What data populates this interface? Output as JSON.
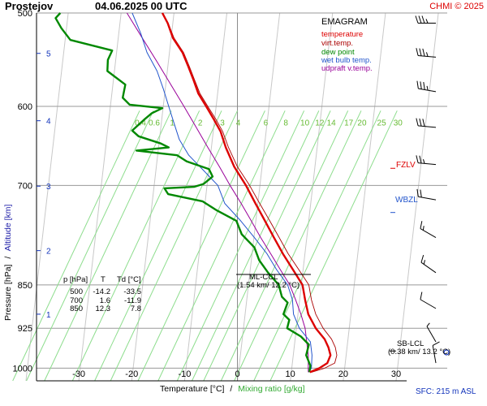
{
  "header": {
    "station": "Prostejov",
    "datetime": "04.06.2025 00 UTC",
    "copyright": "CHMI © 2025"
  },
  "axes": {
    "ylabel_pressure": "Pressure [hPa]",
    "ylabel_sep": "/",
    "ylabel_altitude": "Altitude [km]",
    "xlabel_temperature": "Temperature [°C]",
    "xlabel_sep": "/",
    "xlabel_mixing": "Mixing ratio [g/kg]",
    "footer": "SFC: 215 m ASL"
  },
  "legend": {
    "title": "EMAGRAM",
    "items": [
      {
        "label": "temperature",
        "color": "#cc0000"
      },
      {
        "label": "virt.temp.",
        "color": "#cc0000"
      },
      {
        "label": "dew point",
        "color": "#008800"
      },
      {
        "label": "wet bulb temp.",
        "color": "#2255cc"
      },
      {
        "label": "udpraft v.temp.",
        "color": "#990099"
      }
    ]
  },
  "levels": {
    "fzlv": "FZLV",
    "wbzl": "WBZL",
    "ml_ccl": "ML-CCL",
    "ml_ccl_val": "(1.54 km/ 12.2 °C)",
    "sb_lcl": "SB-LCL",
    "sb_lcl_val": "(0.38 km/ 13.2 °C)"
  },
  "table": {
    "header": [
      "p [hPa]",
      "T",
      "Td [°C]"
    ],
    "rows": [
      [
        "500",
        "-14.2",
        "-33.5"
      ],
      [
        "700",
        "1.6",
        "-11.9"
      ],
      [
        "850",
        "12.3",
        "7.8"
      ]
    ]
  },
  "chart_data": {
    "type": "line",
    "title": "EMAGRAM",
    "x_label": "Temperature [°C]",
    "y_label": "Pressure [hPa]",
    "xlim": [
      -38,
      32
    ],
    "ylim": [
      1025,
      500
    ],
    "log_y": true,
    "x_ticks": [
      -30,
      -20,
      -10,
      0,
      10,
      20,
      30
    ],
    "pressure_ticks": [
      500,
      600,
      700,
      850,
      925,
      1000
    ],
    "altitude_ticks": [
      {
        "label": "1",
        "p": 900
      },
      {
        "label": "2",
        "p": 795
      },
      {
        "label": "3",
        "p": 701
      },
      {
        "label": "4",
        "p": 617
      },
      {
        "label": "5",
        "p": 541
      }
    ],
    "mixing_ratio_labels": [
      "0.4",
      "0.6",
      "1",
      "2",
      "3",
      "4",
      "6",
      "8",
      "10",
      "12",
      "14",
      "17",
      "20",
      "25",
      "30"
    ],
    "series": [
      {
        "name": "temperature",
        "color": "#dd0000",
        "points": [
          [
            1008,
            13.7
          ],
          [
            1000,
            15.5
          ],
          [
            990,
            17.0
          ],
          [
            975,
            17.6
          ],
          [
            960,
            17.2
          ],
          [
            945,
            16.5
          ],
          [
            925,
            14.8
          ],
          [
            900,
            13.4
          ],
          [
            875,
            12.8
          ],
          [
            850,
            12.3
          ],
          [
            825,
            10.5
          ],
          [
            800,
            8.6
          ],
          [
            775,
            6.9
          ],
          [
            750,
            5.2
          ],
          [
            725,
            3.4
          ],
          [
            700,
            1.6
          ],
          [
            675,
            -0.6
          ],
          [
            650,
            -2.2
          ],
          [
            630,
            -3.2
          ],
          [
            615,
            -4.5
          ],
          [
            600,
            -5.9
          ],
          [
            585,
            -7.4
          ],
          [
            570,
            -8.3
          ],
          [
            555,
            -9.3
          ],
          [
            540,
            -10.4
          ],
          [
            525,
            -12.2
          ],
          [
            510,
            -13.2
          ],
          [
            500,
            -14.2
          ]
        ]
      },
      {
        "name": "virt.temp.",
        "color": "#aa0000",
        "points": [
          [
            1008,
            14.0
          ],
          [
            1000,
            16.5
          ],
          [
            990,
            18.4
          ],
          [
            975,
            18.8
          ],
          [
            960,
            18.5
          ],
          [
            945,
            17.8
          ],
          [
            925,
            16.2
          ],
          [
            900,
            14.8
          ],
          [
            875,
            14.0
          ],
          [
            850,
            13.5
          ],
          [
            825,
            11.6
          ],
          [
            800,
            9.6
          ],
          [
            775,
            7.9
          ],
          [
            750,
            6.1
          ],
          [
            725,
            4.2
          ],
          [
            700,
            2.3
          ],
          [
            675,
            0.0
          ],
          [
            650,
            -1.7
          ],
          [
            630,
            -2.8
          ],
          [
            615,
            -4.1
          ],
          [
            600,
            -5.6
          ],
          [
            585,
            -7.1
          ],
          [
            570,
            -8.1
          ],
          [
            555,
            -9.1
          ],
          [
            540,
            -10.2
          ],
          [
            525,
            -12.0
          ],
          [
            510,
            -13.1
          ],
          [
            500,
            -14.1
          ]
        ]
      },
      {
        "name": "dew point",
        "color": "#008800",
        "points": [
          [
            1008,
            13.6
          ],
          [
            995,
            13.8
          ],
          [
            975,
            13.0
          ],
          [
            955,
            13.5
          ],
          [
            940,
            12.0
          ],
          [
            925,
            9.4
          ],
          [
            910,
            9.8
          ],
          [
            900,
            8.7
          ],
          [
            880,
            9.5
          ],
          [
            870,
            8.4
          ],
          [
            850,
            7.8
          ],
          [
            830,
            5.8
          ],
          [
            810,
            4.1
          ],
          [
            790,
            3.2
          ],
          [
            770,
            0.8
          ],
          [
            750,
            -0.2
          ],
          [
            735,
            -3.9
          ],
          [
            722,
            -6.6
          ],
          [
            712,
            -13.1
          ],
          [
            704,
            -13.8
          ],
          [
            702,
            -8.2
          ],
          [
            698,
            -6.4
          ],
          [
            688,
            -4.7
          ],
          [
            678,
            -5.4
          ],
          [
            668,
            -9.6
          ],
          [
            660,
            -11.4
          ],
          [
            654,
            -19.1
          ],
          [
            650,
            -13.0
          ],
          [
            645,
            -14.5
          ],
          [
            636,
            -18.7
          ],
          [
            629,
            -19.9
          ],
          [
            616,
            -17.7
          ],
          [
            608,
            -16.2
          ],
          [
            602,
            -14.2
          ],
          [
            598,
            -20.4
          ],
          [
            590,
            -21.7
          ],
          [
            575,
            -21.2
          ],
          [
            560,
            -24.6
          ],
          [
            548,
            -24.5
          ],
          [
            538,
            -23.7
          ],
          [
            527,
            -31.6
          ],
          [
            515,
            -33.3
          ],
          [
            505,
            -34.4
          ],
          [
            500,
            -33.5
          ]
        ]
      },
      {
        "name": "wet bulb temp.",
        "color": "#2255cc",
        "points": [
          [
            1008,
            13.5
          ],
          [
            1000,
            14.0
          ],
          [
            975,
            14.1
          ],
          [
            950,
            13.8
          ],
          [
            925,
            11.7
          ],
          [
            900,
            10.6
          ],
          [
            875,
            10.4
          ],
          [
            850,
            9.5
          ],
          [
            825,
            7.4
          ],
          [
            800,
            5.6
          ],
          [
            775,
            3.2
          ],
          [
            750,
            0.6
          ],
          [
            725,
            -2.4
          ],
          [
            700,
            -3.7
          ],
          [
            680,
            -6.4
          ],
          [
            660,
            -9.2
          ],
          [
            640,
            -11.0
          ],
          [
            620,
            -12.0
          ],
          [
            600,
            -13.0
          ],
          [
            580,
            -14.0
          ],
          [
            560,
            -15.2
          ],
          [
            540,
            -17.1
          ],
          [
            520,
            -18.3
          ],
          [
            500,
            -19.9
          ]
        ]
      },
      {
        "name": "udpraft v.temp.",
        "color": "#990099",
        "points": [
          [
            1008,
            13.4
          ],
          [
            975,
            13.4
          ],
          [
            925,
            12.8
          ],
          [
            900,
            12.0
          ],
          [
            875,
            11.0
          ],
          [
            850,
            9.9
          ],
          [
            825,
            8.1
          ],
          [
            800,
            6.3
          ],
          [
            775,
            4.4
          ],
          [
            750,
            2.6
          ],
          [
            725,
            0.7
          ],
          [
            700,
            -1.4
          ],
          [
            675,
            -3.4
          ],
          [
            650,
            -5.6
          ],
          [
            625,
            -7.8
          ],
          [
            600,
            -10.1
          ],
          [
            575,
            -12.6
          ],
          [
            550,
            -15.2
          ],
          [
            525,
            -18.0
          ],
          [
            500,
            -20.9
          ]
        ]
      }
    ],
    "special_levels": [
      {
        "name": "FZLV",
        "p": 677
      },
      {
        "name": "WBZL",
        "p": 738
      },
      {
        "name": "ML-CCL",
        "p": 850
      },
      {
        "name": "SB-LCL",
        "p": 967
      }
    ],
    "winds": [
      {
        "p": 510,
        "dir": 270,
        "speed": 35
      },
      {
        "p": 545,
        "dir": 275,
        "speed": 35
      },
      {
        "p": 583,
        "dir": 280,
        "speed": 35
      },
      {
        "p": 625,
        "dir": 275,
        "speed": 30
      },
      {
        "p": 672,
        "dir": 275,
        "speed": 25
      },
      {
        "p": 720,
        "dir": 280,
        "speed": 20
      },
      {
        "p": 775,
        "dir": 300,
        "speed": 15
      },
      {
        "p": 830,
        "dir": 305,
        "speed": 15
      },
      {
        "p": 890,
        "dir": 300,
        "speed": 10
      },
      {
        "p": 950,
        "dir": 330,
        "speed": 5
      },
      {
        "p": 990,
        "dir": 350,
        "speed": 10
      }
    ]
  }
}
